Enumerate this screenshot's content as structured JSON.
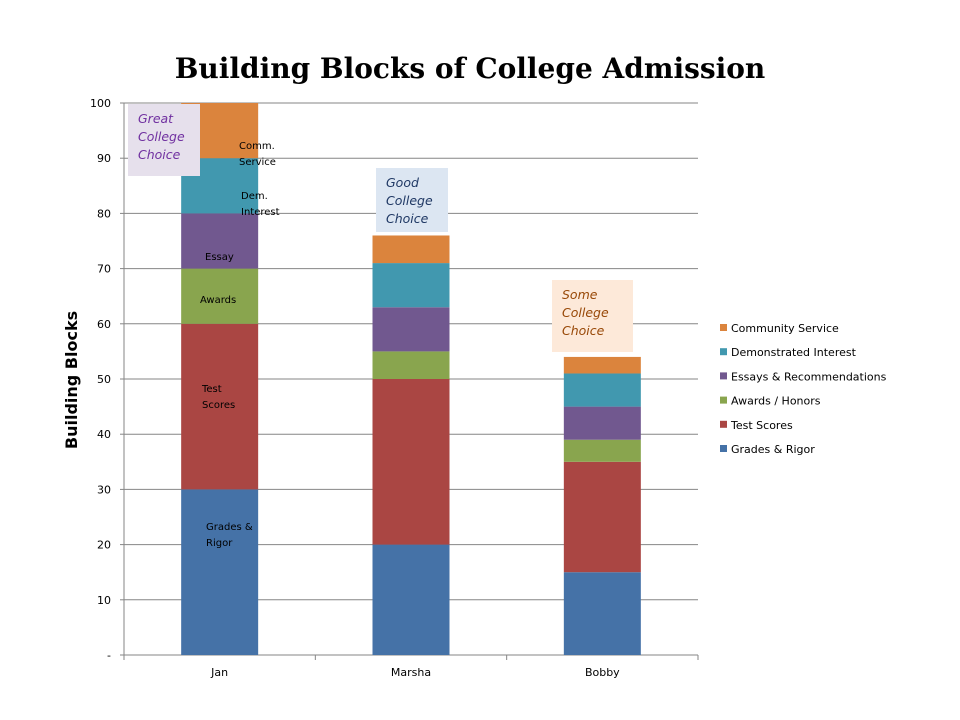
{
  "chart_data": {
    "type": "bar",
    "stacked": true,
    "title": "Building Blocks of College Admission",
    "xlabel": "",
    "ylabel": "Building Blocks",
    "ylim": [
      0,
      100
    ],
    "yticks": [
      0,
      10,
      20,
      30,
      40,
      50,
      60,
      70,
      80,
      90,
      100
    ],
    "ytick_labels": [
      "-",
      "10",
      "20",
      "30",
      "40",
      "50",
      "60",
      "70",
      "80",
      "90",
      "100"
    ],
    "grid": true,
    "legend_position": "right",
    "categories": [
      "Jan",
      "Marsha",
      "Bobby"
    ],
    "series": [
      {
        "name": "Grades & Rigor",
        "color": "#4572A7",
        "values": [
          30,
          20,
          15
        ]
      },
      {
        "name": "Test Scores",
        "color": "#AA4643",
        "values": [
          30,
          30,
          20
        ]
      },
      {
        "name": "Awards / Honors",
        "color": "#89A54E",
        "values": [
          10,
          5,
          4
        ]
      },
      {
        "name": "Essays & Recommendations",
        "color": "#71588F",
        "values": [
          10,
          8,
          6
        ]
      },
      {
        "name": "Demonstrated Interest",
        "color": "#4198AF",
        "values": [
          10,
          8,
          6
        ]
      },
      {
        "name": "Community Service",
        "color": "#DB843D",
        "values": [
          10,
          5,
          3
        ]
      }
    ],
    "segment_labels": [
      {
        "text": "Grades & Rigor",
        "lines": [
          "Grades &",
          "Rigor"
        ]
      },
      {
        "text": "Test Scores",
        "lines": [
          "Test",
          "Scores"
        ]
      },
      {
        "text": "Awards",
        "lines": [
          "Awards"
        ]
      },
      {
        "text": "Essay",
        "lines": [
          "Essay"
        ]
      },
      {
        "text": "Dem. Interest",
        "lines": [
          "Dem.",
          "Interest"
        ]
      },
      {
        "text": "Comm. Service",
        "lines": [
          "Comm.",
          "Service"
        ]
      }
    ],
    "annotations": [
      {
        "text": "Great College Choice",
        "lines": [
          "Great",
          "College",
          "Choice"
        ],
        "bg": "#E6E0EC",
        "color": "#7030A0"
      },
      {
        "text": "Good College Choice",
        "lines": [
          "Good",
          "College",
          "Choice"
        ],
        "bg": "#DCE6F2",
        "color": "#1F3864"
      },
      {
        "text": "Some College Choice",
        "lines": [
          "Some",
          "College",
          "Choice"
        ],
        "bg": "#FDE9D9",
        "color": "#984807"
      }
    ]
  }
}
